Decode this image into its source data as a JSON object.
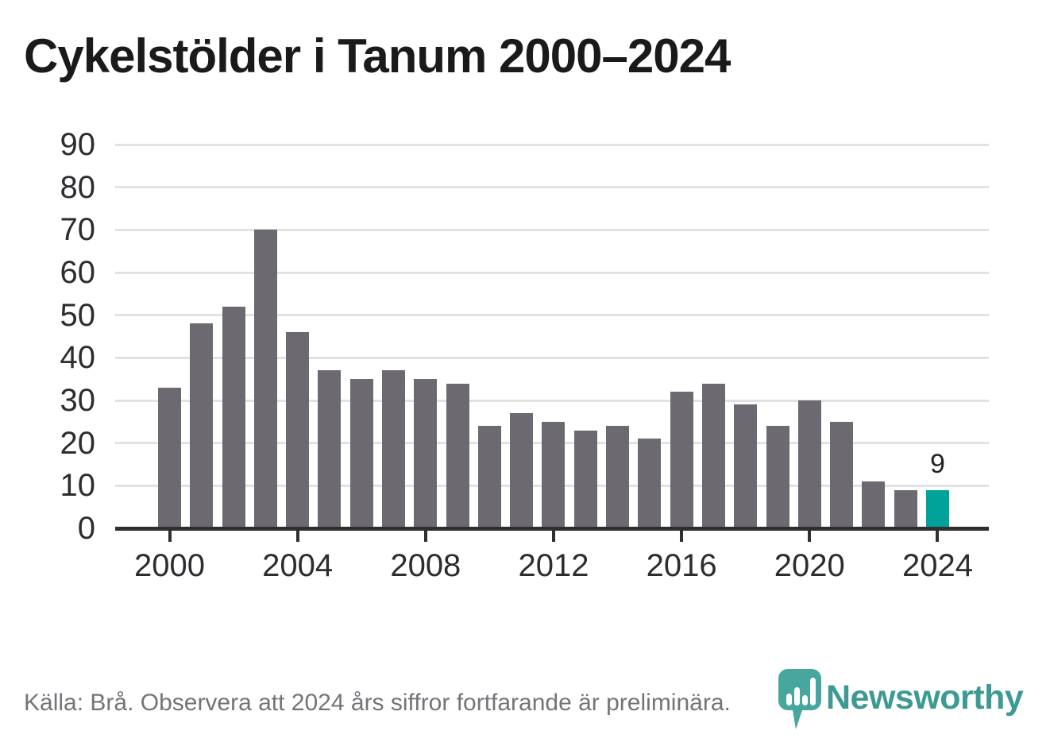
{
  "title": "Cykelstölder i Tanum 2000–2024",
  "footer": {
    "source_note": "Källa: Brå. Observera att 2024 års siffror fortfarande är preliminära."
  },
  "logo": {
    "text": "Newsworthy"
  },
  "colors": {
    "bar": "#6c6a70",
    "highlight": "#00a39b",
    "grid": "#e2e2e2",
    "axis_line": "#2f2f2f",
    "axis_text": "#2d2d31",
    "title_text": "#1a1a1a",
    "footer_text": "#75737a",
    "logo_teal": "#47a69e",
    "logo_text_teal": "#3d9a93",
    "data_label_text": "#222222"
  },
  "chart_data": {
    "type": "bar",
    "title": "Cykelstölder i Tanum 2000–2024",
    "categories": [
      2000,
      2001,
      2002,
      2003,
      2004,
      2005,
      2006,
      2007,
      2008,
      2009,
      2010,
      2011,
      2012,
      2013,
      2014,
      2015,
      2016,
      2017,
      2018,
      2019,
      2020,
      2021,
      2022,
      2023,
      2024
    ],
    "values": [
      33,
      48,
      52,
      70,
      46,
      37,
      35,
      37,
      35,
      34,
      24,
      27,
      25,
      23,
      24,
      21,
      32,
      34,
      29,
      24,
      30,
      25,
      11,
      9,
      9
    ],
    "highlight_category": 2024,
    "data_label": {
      "category": 2024,
      "text": "9"
    },
    "xlabel": "",
    "ylabel": "",
    "ylim": [
      0,
      90
    ],
    "yticks": [
      0,
      10,
      20,
      30,
      40,
      50,
      60,
      70,
      80,
      90
    ],
    "xticks": [
      2000,
      2004,
      2008,
      2012,
      2016,
      2020,
      2024
    ],
    "grid": "horizontal",
    "legend": "none"
  }
}
